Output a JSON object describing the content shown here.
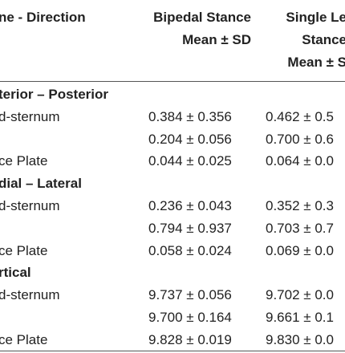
{
  "header": {
    "direction": "ne - Direction",
    "bipedal": [
      "Bipedal Stance",
      "Mean ± SD"
    ],
    "single": [
      "Single Le",
      "Stance",
      "Mean ± S"
    ]
  },
  "sections": [
    {
      "title": "terior – Posterior",
      "rows": [
        {
          "label": "d-sternum",
          "values": [
            "0.384 ± 0.356",
            "0.462 ± 0.5"
          ]
        },
        {
          "values": [
            "0.204 ± 0.056",
            "0.700 ± 0.6"
          ]
        },
        {
          "label": "ce Plate",
          "values": [
            "0.044 ± 0.025",
            "0.064 ± 0.0"
          ]
        }
      ]
    },
    {
      "title": "dial – Lateral",
      "rows": [
        {
          "label": "d-sternum",
          "values": [
            "0.236 ± 0.043",
            "0.352 ± 0.3"
          ]
        },
        {
          "values": [
            "0.794 ± 0.937",
            "0.703 ± 0.7"
          ]
        },
        {
          "label": "ce Plate",
          "values": [
            "0.058 ± 0.024",
            "0.069 ± 0.0"
          ]
        }
      ]
    },
    {
      "title": "rtical",
      "rows": [
        {
          "label": "d-sternum",
          "values": [
            "9.737 ± 0.056",
            "9.702 ± 0.0"
          ]
        },
        {
          "values": [
            "9.700 ± 0.164",
            "9.661 ± 0.1"
          ]
        },
        {
          "label": "ce Plate",
          "values": [
            "9.828 ± 0.019",
            "9.830 ± 0.0"
          ]
        }
      ]
    }
  ]
}
